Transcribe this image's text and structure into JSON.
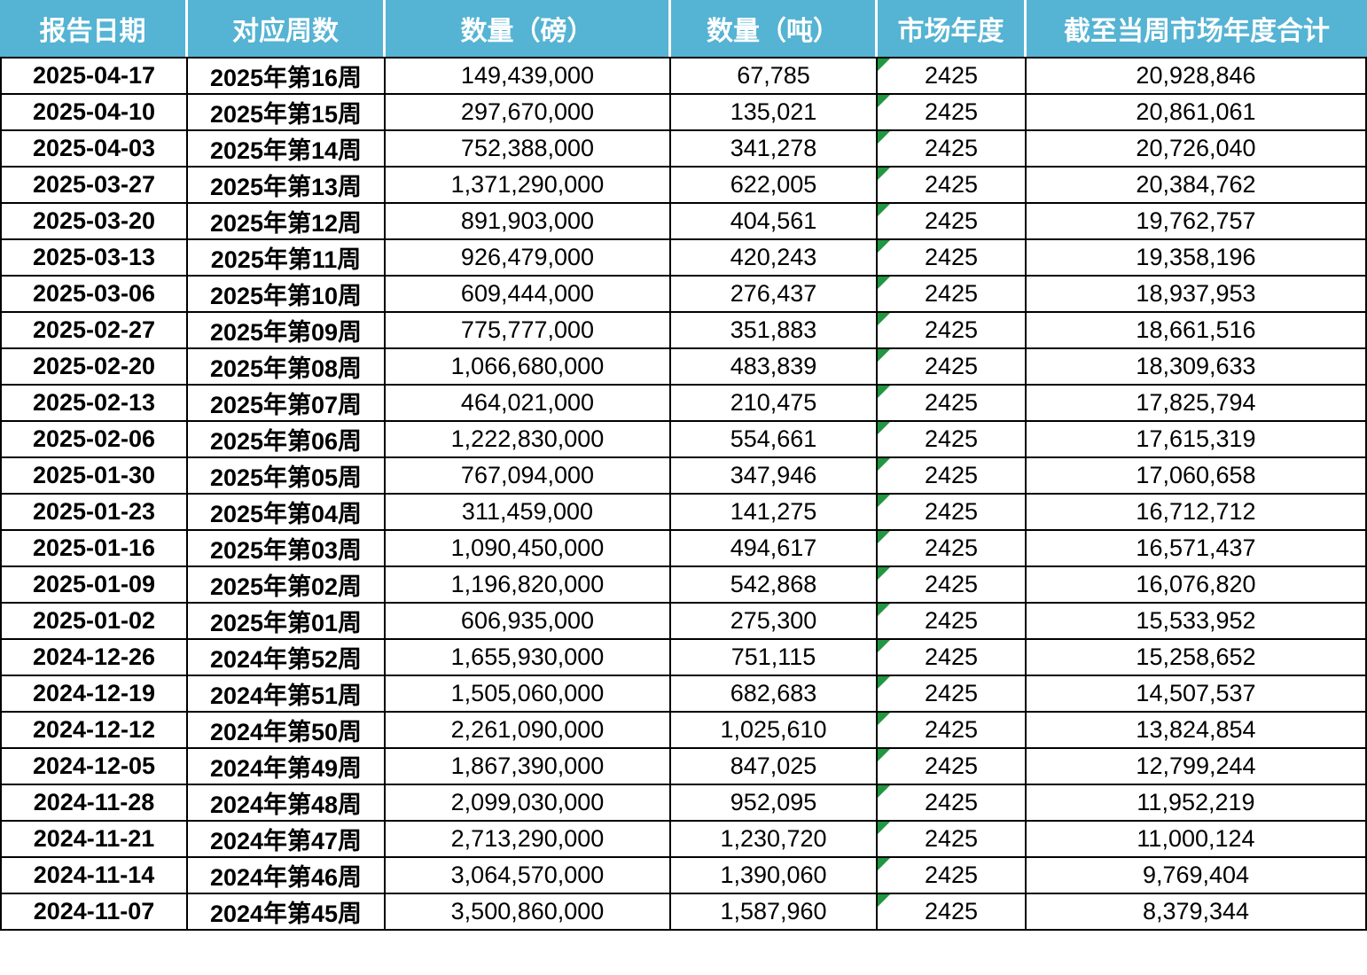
{
  "chart_data": {
    "type": "table",
    "columns": [
      "报告日期",
      "对应周数",
      "数量（磅）",
      "数量（吨）",
      "市场年度",
      "截至当周市场年度合计"
    ],
    "column_keys": [
      "report-date",
      "week-number",
      "quantity-pounds",
      "quantity-tons",
      "market-year",
      "marketing-year-cumulative"
    ],
    "flag_icon": {
      "name": "error-flag-icon",
      "column_index": 4
    },
    "rows": [
      [
        "2025-04-17",
        "2025年第16周",
        "149,439,000",
        "67,785",
        "2425",
        "20,928,846"
      ],
      [
        "2025-04-10",
        "2025年第15周",
        "297,670,000",
        "135,021",
        "2425",
        "20,861,061"
      ],
      [
        "2025-04-03",
        "2025年第14周",
        "752,388,000",
        "341,278",
        "2425",
        "20,726,040"
      ],
      [
        "2025-03-27",
        "2025年第13周",
        "1,371,290,000",
        "622,005",
        "2425",
        "20,384,762"
      ],
      [
        "2025-03-20",
        "2025年第12周",
        "891,903,000",
        "404,561",
        "2425",
        "19,762,757"
      ],
      [
        "2025-03-13",
        "2025年第11周",
        "926,479,000",
        "420,243",
        "2425",
        "19,358,196"
      ],
      [
        "2025-03-06",
        "2025年第10周",
        "609,444,000",
        "276,437",
        "2425",
        "18,937,953"
      ],
      [
        "2025-02-27",
        "2025年第09周",
        "775,777,000",
        "351,883",
        "2425",
        "18,661,516"
      ],
      [
        "2025-02-20",
        "2025年第08周",
        "1,066,680,000",
        "483,839",
        "2425",
        "18,309,633"
      ],
      [
        "2025-02-13",
        "2025年第07周",
        "464,021,000",
        "210,475",
        "2425",
        "17,825,794"
      ],
      [
        "2025-02-06",
        "2025年第06周",
        "1,222,830,000",
        "554,661",
        "2425",
        "17,615,319"
      ],
      [
        "2025-01-30",
        "2025年第05周",
        "767,094,000",
        "347,946",
        "2425",
        "17,060,658"
      ],
      [
        "2025-01-23",
        "2025年第04周",
        "311,459,000",
        "141,275",
        "2425",
        "16,712,712"
      ],
      [
        "2025-01-16",
        "2025年第03周",
        "1,090,450,000",
        "494,617",
        "2425",
        "16,571,437"
      ],
      [
        "2025-01-09",
        "2025年第02周",
        "1,196,820,000",
        "542,868",
        "2425",
        "16,076,820"
      ],
      [
        "2025-01-02",
        "2025年第01周",
        "606,935,000",
        "275,300",
        "2425",
        "15,533,952"
      ],
      [
        "2024-12-26",
        "2024年第52周",
        "1,655,930,000",
        "751,115",
        "2425",
        "15,258,652"
      ],
      [
        "2024-12-19",
        "2024年第51周",
        "1,505,060,000",
        "682,683",
        "2425",
        "14,507,537"
      ],
      [
        "2024-12-12",
        "2024年第50周",
        "2,261,090,000",
        "1,025,610",
        "2425",
        "13,824,854"
      ],
      [
        "2024-12-05",
        "2024年第49周",
        "1,867,390,000",
        "847,025",
        "2425",
        "12,799,244"
      ],
      [
        "2024-11-28",
        "2024年第48周",
        "2,099,030,000",
        "952,095",
        "2425",
        "11,952,219"
      ],
      [
        "2024-11-21",
        "2024年第47周",
        "2,713,290,000",
        "1,230,720",
        "2425",
        "11,000,124"
      ],
      [
        "2024-11-14",
        "2024年第46周",
        "3,064,570,000",
        "1,390,060",
        "2425",
        "9,769,404"
      ],
      [
        "2024-11-07",
        "2024年第45周",
        "3,500,860,000",
        "1,587,960",
        "2425",
        "8,379,344"
      ]
    ]
  },
  "colors": {
    "header_bg": "#55B3D3",
    "header_text": "#FFFFFF",
    "grid_line": "#000000",
    "cell_bg": "#FFFFFF",
    "cell_text": "#000000",
    "flag_green": "#229640"
  }
}
